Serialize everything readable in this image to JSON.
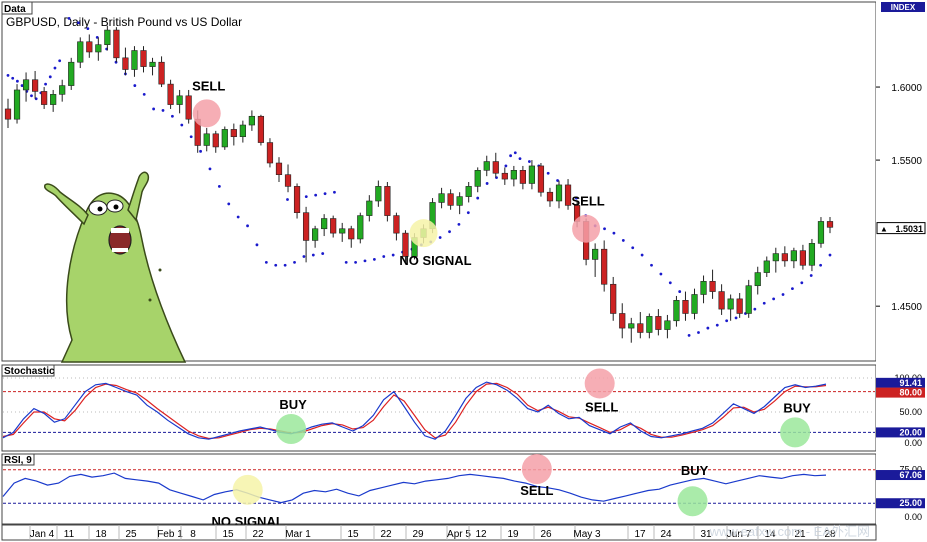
{
  "window": {
    "title": "Data",
    "symbol_label": "GBPUSD, Daily - British Pound vs US Dollar",
    "index_label": "INDEX"
  },
  "colors": {
    "bull": "#22aa22",
    "bear": "#cc2222",
    "sar": "#1a1acc",
    "stoch_k": "#1a3acc",
    "stoch_d": "#dd2222",
    "rsi": "#1a3acc",
    "sell_circle": "#f4a0a8",
    "buy_circle": "#9be89b",
    "nosignal_circle": "#f6f3a8",
    "axis_highlight": "#1a1a9a"
  },
  "main_panel": {
    "price_ticks": [
      "1.6000",
      "1.5500",
      "1.4500"
    ],
    "last_price": "1.5031",
    "annotations": [
      {
        "label": "SELL",
        "type": "sell"
      },
      {
        "label": "NO SIGNAL",
        "type": "nosignal"
      },
      {
        "label": "SELL",
        "type": "sell"
      }
    ]
  },
  "stochastic_panel": {
    "title": "Stochastic",
    "ticks": [
      "100.00",
      "50.00",
      "0.00"
    ],
    "highlight_ticks": [
      "91.41",
      "80.00",
      "20.00"
    ],
    "annotations": [
      {
        "label": "BUY",
        "type": "buy"
      },
      {
        "label": "SELL",
        "type": "sell"
      },
      {
        "label": "BUY",
        "type": "buy"
      }
    ]
  },
  "rsi_panel": {
    "title": "RSI, 9",
    "ticks": [
      "75.00",
      "0.00"
    ],
    "highlight_ticks": [
      "67.06",
      "25.00"
    ],
    "annotations": [
      {
        "label": "NO SIGNAL",
        "type": "nosignal"
      },
      {
        "label": "SELL",
        "type": "sell"
      },
      {
        "label": "BUY",
        "type": "buy"
      }
    ]
  },
  "x_axis": {
    "labels": [
      "Jan 4",
      "11",
      "18",
      "25",
      "Feb 1",
      "8",
      "15",
      "22",
      "Mar 1",
      "15",
      "22",
      "29",
      "Apr 5",
      "12",
      "19",
      "26",
      "May 3",
      "17",
      "24",
      "31",
      "Jun 7",
      "14",
      "21",
      "28"
    ]
  },
  "watermark": "www.eafxw.com - EA外汇网",
  "chart_data": {
    "type": "candlestick",
    "title": "GBPUSD, Daily - British Pound vs US Dollar",
    "ylim": [
      1.42,
      1.65
    ],
    "y_ticks": [
      1.6,
      1.55,
      1.45
    ],
    "last_price": 1.5031,
    "candles": [
      [
        1.585,
        1.592,
        1.572,
        1.578
      ],
      [
        1.578,
        1.602,
        1.575,
        1.598
      ],
      [
        1.598,
        1.61,
        1.59,
        1.605
      ],
      [
        1.605,
        1.611,
        1.592,
        1.597
      ],
      [
        1.597,
        1.6,
        1.585,
        1.588
      ],
      [
        1.588,
        1.598,
        1.583,
        1.595
      ],
      [
        1.595,
        1.605,
        1.59,
        1.601
      ],
      [
        1.601,
        1.62,
        1.598,
        1.617
      ],
      [
        1.617,
        1.634,
        1.613,
        1.631
      ],
      [
        1.631,
        1.636,
        1.62,
        1.624
      ],
      [
        1.624,
        1.634,
        1.618,
        1.629
      ],
      [
        1.629,
        1.642,
        1.625,
        1.639
      ],
      [
        1.639,
        1.641,
        1.617,
        1.62
      ],
      [
        1.62,
        1.627,
        1.608,
        1.612
      ],
      [
        1.612,
        1.628,
        1.607,
        1.625
      ],
      [
        1.625,
        1.628,
        1.61,
        1.614
      ],
      [
        1.614,
        1.62,
        1.608,
        1.617
      ],
      [
        1.617,
        1.621,
        1.6,
        1.602
      ],
      [
        1.602,
        1.605,
        1.585,
        1.588
      ],
      [
        1.588,
        1.598,
        1.582,
        1.594
      ],
      [
        1.594,
        1.598,
        1.575,
        1.578
      ],
      [
        1.578,
        1.584,
        1.555,
        1.56
      ],
      [
        1.56,
        1.572,
        1.556,
        1.568
      ],
      [
        1.568,
        1.57,
        1.555,
        1.559
      ],
      [
        1.559,
        1.573,
        1.557,
        1.571
      ],
      [
        1.571,
        1.575,
        1.56,
        1.566
      ],
      [
        1.566,
        1.577,
        1.562,
        1.574
      ],
      [
        1.574,
        1.584,
        1.57,
        1.58
      ],
      [
        1.58,
        1.581,
        1.56,
        1.562
      ],
      [
        1.562,
        1.565,
        1.545,
        1.548
      ],
      [
        1.548,
        1.552,
        1.535,
        1.54
      ],
      [
        1.54,
        1.547,
        1.528,
        1.532
      ],
      [
        1.532,
        1.534,
        1.51,
        1.514
      ],
      [
        1.514,
        1.518,
        1.48,
        1.495
      ],
      [
        1.495,
        1.505,
        1.49,
        1.503
      ],
      [
        1.503,
        1.513,
        1.498,
        1.51
      ],
      [
        1.51,
        1.512,
        1.497,
        1.5
      ],
      [
        1.5,
        1.507,
        1.494,
        1.503
      ],
      [
        1.503,
        1.505,
        1.49,
        1.496
      ],
      [
        1.496,
        1.514,
        1.493,
        1.512
      ],
      [
        1.512,
        1.526,
        1.508,
        1.522
      ],
      [
        1.522,
        1.536,
        1.518,
        1.532
      ],
      [
        1.532,
        1.535,
        1.508,
        1.512
      ],
      [
        1.512,
        1.514,
        1.495,
        1.5
      ],
      [
        1.5,
        1.502,
        1.48,
        1.484
      ],
      [
        1.484,
        1.5,
        1.482,
        1.497
      ],
      [
        1.497,
        1.506,
        1.493,
        1.503
      ],
      [
        1.503,
        1.524,
        1.5,
        1.521
      ],
      [
        1.521,
        1.531,
        1.517,
        1.527
      ],
      [
        1.527,
        1.53,
        1.516,
        1.519
      ],
      [
        1.519,
        1.528,
        1.513,
        1.525
      ],
      [
        1.525,
        1.535,
        1.521,
        1.532
      ],
      [
        1.532,
        1.545,
        1.528,
        1.543
      ],
      [
        1.543,
        1.553,
        1.539,
        1.549
      ],
      [
        1.549,
        1.555,
        1.538,
        1.541
      ],
      [
        1.541,
        1.545,
        1.533,
        1.537
      ],
      [
        1.537,
        1.546,
        1.532,
        1.543
      ],
      [
        1.543,
        1.546,
        1.53,
        1.534
      ],
      [
        1.534,
        1.55,
        1.53,
        1.546
      ],
      [
        1.546,
        1.548,
        1.525,
        1.528
      ],
      [
        1.528,
        1.531,
        1.518,
        1.522
      ],
      [
        1.522,
        1.536,
        1.517,
        1.533
      ],
      [
        1.533,
        1.537,
        1.516,
        1.519
      ],
      [
        1.519,
        1.522,
        1.504,
        1.508
      ],
      [
        1.508,
        1.51,
        1.478,
        1.482
      ],
      [
        1.482,
        1.493,
        1.47,
        1.489
      ],
      [
        1.489,
        1.495,
        1.46,
        1.465
      ],
      [
        1.465,
        1.47,
        1.44,
        1.445
      ],
      [
        1.445,
        1.452,
        1.428,
        1.435
      ],
      [
        1.435,
        1.442,
        1.425,
        1.438
      ],
      [
        1.438,
        1.446,
        1.428,
        1.432
      ],
      [
        1.432,
        1.445,
        1.428,
        1.443
      ],
      [
        1.443,
        1.448,
        1.43,
        1.434
      ],
      [
        1.434,
        1.444,
        1.428,
        1.44
      ],
      [
        1.44,
        1.457,
        1.436,
        1.454
      ],
      [
        1.454,
        1.46,
        1.44,
        1.445
      ],
      [
        1.445,
        1.462,
        1.441,
        1.458
      ],
      [
        1.458,
        1.471,
        1.452,
        1.467
      ],
      [
        1.467,
        1.475,
        1.455,
        1.46
      ],
      [
        1.46,
        1.465,
        1.444,
        1.448
      ],
      [
        1.448,
        1.458,
        1.44,
        1.455
      ],
      [
        1.455,
        1.459,
        1.442,
        1.445
      ],
      [
        1.445,
        1.468,
        1.442,
        1.464
      ],
      [
        1.464,
        1.477,
        1.458,
        1.473
      ],
      [
        1.473,
        1.484,
        1.47,
        1.481
      ],
      [
        1.481,
        1.49,
        1.473,
        1.486
      ],
      [
        1.486,
        1.491,
        1.477,
        1.481
      ],
      [
        1.481,
        1.49,
        1.476,
        1.488
      ],
      [
        1.488,
        1.492,
        1.475,
        1.478
      ],
      [
        1.478,
        1.496,
        1.474,
        1.493
      ],
      [
        1.493,
        1.511,
        1.49,
        1.508
      ],
      [
        1.508,
        1.511,
        1.5,
        1.504
      ]
    ],
    "sar": [
      [
        0,
        1.608
      ],
      [
        1,
        1.606
      ],
      [
        2,
        1.604
      ],
      [
        3,
        1.601
      ],
      [
        4,
        1.597
      ],
      [
        5,
        1.594
      ],
      [
        6,
        1.592
      ],
      [
        7,
        1.596
      ],
      [
        8,
        1.602
      ],
      [
        9,
        1.607
      ],
      [
        10,
        1.613
      ],
      [
        11,
        1.618
      ],
      [
        13,
        1.647
      ],
      [
        15,
        1.644
      ],
      [
        17,
        1.64
      ],
      [
        19,
        1.634
      ],
      [
        21,
        1.626
      ],
      [
        23,
        1.617
      ],
      [
        25,
        1.609
      ],
      [
        27,
        1.601
      ],
      [
        29,
        1.595
      ],
      [
        31,
        1.585
      ],
      [
        33,
        1.584
      ],
      [
        35,
        1.58
      ],
      [
        37,
        1.574
      ],
      [
        39,
        1.566
      ],
      [
        41,
        1.556
      ],
      [
        43,
        1.544
      ],
      [
        45,
        1.532
      ],
      [
        47,
        1.52
      ],
      [
        49,
        1.511
      ],
      [
        51,
        1.505
      ],
      [
        53,
        1.492
      ],
      [
        55,
        1.48
      ],
      [
        57,
        1.478
      ],
      [
        59,
        1.478
      ],
      [
        61,
        1.48
      ],
      [
        63,
        1.484
      ],
      [
        65,
        1.485
      ],
      [
        67,
        1.486
      ],
      [
        59.5,
        1.523
      ],
      [
        61.5,
        1.524
      ],
      [
        63.5,
        1.525
      ],
      [
        65.5,
        1.526
      ],
      [
        67.5,
        1.527
      ],
      [
        69.5,
        1.528
      ],
      [
        72,
        1.48
      ],
      [
        74,
        1.48
      ],
      [
        76,
        1.481
      ],
      [
        78,
        1.482
      ],
      [
        80,
        1.484
      ],
      [
        82,
        1.485
      ],
      [
        84,
        1.487
      ],
      [
        86,
        1.489
      ],
      [
        88,
        1.492
      ],
      [
        90,
        1.494
      ],
      [
        92,
        1.497
      ],
      [
        94,
        1.501
      ],
      [
        96,
        1.506
      ],
      [
        98,
        1.514
      ],
      [
        100,
        1.524
      ],
      [
        102,
        1.534
      ],
      [
        104,
        1.538
      ],
      [
        106,
        1.546
      ],
      [
        108,
        1.555
      ],
      [
        107,
        1.553
      ],
      [
        109,
        1.551
      ],
      [
        111,
        1.549
      ],
      [
        113,
        1.546
      ],
      [
        115,
        1.541
      ],
      [
        117,
        1.536
      ],
      [
        119,
        1.53
      ],
      [
        121,
        1.524
      ],
      [
        123,
        1.512
      ],
      [
        125,
        1.505
      ],
      [
        127,
        1.503
      ],
      [
        129,
        1.5
      ],
      [
        131,
        1.495
      ],
      [
        133,
        1.49
      ],
      [
        135,
        1.485
      ],
      [
        137,
        1.478
      ],
      [
        139,
        1.472
      ],
      [
        141,
        1.466
      ],
      [
        143,
        1.46
      ],
      [
        145,
        1.43
      ],
      [
        147,
        1.432
      ],
      [
        149,
        1.435
      ],
      [
        151,
        1.437
      ],
      [
        153,
        1.44
      ],
      [
        155,
        1.442
      ],
      [
        157,
        1.445
      ],
      [
        159,
        1.448
      ],
      [
        161,
        1.452
      ],
      [
        163,
        1.455
      ],
      [
        165,
        1.458
      ],
      [
        167,
        1.462
      ],
      [
        169,
        1.466
      ],
      [
        171,
        1.471
      ],
      [
        173,
        1.478
      ],
      [
        175,
        1.485
      ]
    ],
    "stochastic": {
      "k": [
        12,
        20,
        40,
        55,
        48,
        35,
        40,
        60,
        80,
        90,
        92,
        86,
        80,
        75,
        60,
        50,
        38,
        28,
        18,
        12,
        10,
        14,
        18,
        22,
        25,
        28,
        24,
        20,
        18,
        22,
        28,
        32,
        34,
        28,
        22,
        30,
        45,
        68,
        80,
        58,
        35,
        15,
        10,
        22,
        45,
        70,
        86,
        94,
        90,
        82,
        70,
        55,
        50,
        60,
        48,
        40,
        42,
        30,
        24,
        18,
        28,
        34,
        22,
        14,
        12,
        15,
        18,
        22,
        26,
        34,
        48,
        62,
        55,
        48,
        58,
        72,
        86,
        90,
        86,
        88,
        91
      ],
      "d": [
        14,
        17,
        34,
        50,
        50,
        40,
        37,
        52,
        72,
        86,
        91,
        89,
        83,
        78,
        67,
        55,
        44,
        33,
        22,
        15,
        11,
        12,
        16,
        20,
        24,
        26,
        25,
        22,
        19,
        20,
        25,
        30,
        33,
        31,
        25,
        27,
        38,
        58,
        75,
        66,
        45,
        24,
        12,
        16,
        35,
        60,
        80,
        91,
        92,
        86,
        76,
        60,
        52,
        57,
        51,
        43,
        41,
        34,
        27,
        20,
        24,
        32,
        26,
        17,
        13,
        13,
        16,
        20,
        24,
        30,
        42,
        56,
        57,
        50,
        54,
        66,
        80,
        88,
        87,
        87,
        89
      ],
      "levels": [
        80,
        20
      ],
      "current_k": 91.41
    },
    "rsi": {
      "values": [
        35,
        55,
        62,
        58,
        52,
        55,
        65,
        68,
        64,
        66,
        70,
        62,
        60,
        58,
        55,
        45,
        40,
        35,
        30,
        38,
        42,
        45,
        40,
        34,
        30,
        26,
        30,
        40,
        44,
        42,
        46,
        40,
        36,
        44,
        48,
        52,
        56,
        54,
        58,
        60,
        62,
        66,
        68,
        66,
        64,
        62,
        58,
        55,
        50,
        48,
        45,
        40,
        34,
        30,
        28,
        32,
        36,
        40,
        44,
        46,
        52,
        56,
        60,
        62,
        58,
        54,
        58,
        62,
        66,
        64,
        62,
        66,
        68,
        66,
        67
      ],
      "levels": [
        75,
        25
      ],
      "current": 67.06
    }
  }
}
